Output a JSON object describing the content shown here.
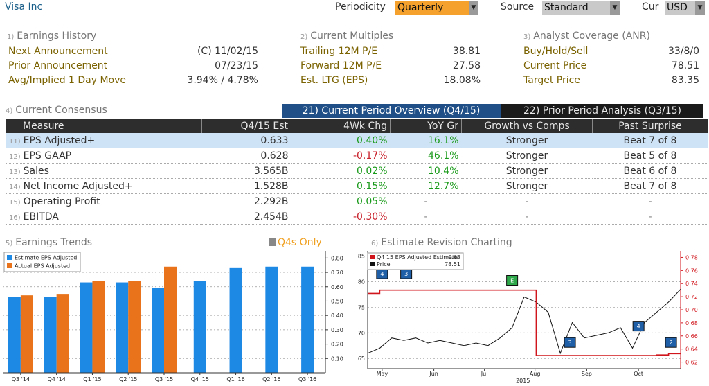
{
  "header": {
    "company": "Visa Inc",
    "periodicity_label": "Periodicity",
    "periodicity_value": "Quarterly",
    "source_label": "Source",
    "source_value": "Standard",
    "cur_label": "Cur",
    "cur_value": "USD"
  },
  "sections": {
    "earnings_history": {
      "num": "1)",
      "title": "Earnings History",
      "rows": [
        {
          "label": "Next Announcement",
          "value": "(C)  11/02/15"
        },
        {
          "label": "Prior Announcement",
          "value": "07/23/15"
        },
        {
          "label": "Avg/Implied 1 Day Move",
          "value": "3.94% / 4.78%"
        }
      ]
    },
    "current_multiples": {
      "num": "2)",
      "title": "Current Multiples",
      "rows": [
        {
          "label": "Trailing 12M P/E",
          "value": "38.81"
        },
        {
          "label": "Forward 12M P/E",
          "value": "27.58"
        },
        {
          "label": "Est. LTG (EPS)",
          "value": "18.08%"
        }
      ]
    },
    "analyst_coverage": {
      "num": "3)",
      "title": "Analyst Coverage (ANR)",
      "rows": [
        {
          "label": "Buy/Hold/Sell",
          "value": "33/8/0"
        },
        {
          "label": "Current Price",
          "value": "78.51"
        },
        {
          "label": "Target Price",
          "value": "83.35"
        }
      ]
    }
  },
  "consensus": {
    "num": "4)",
    "title": "Current Consensus",
    "tab_current": "21) Current Period Overview (Q4/15)",
    "tab_prior": "22) Prior Period Analysis (Q3/15)",
    "columns": [
      "Measure",
      "Q4/15 Est",
      "4Wk Chg",
      "YoY Gr",
      "Growth vs Comps",
      "Past Surprise"
    ],
    "rows": [
      {
        "n": "11)",
        "measure": "EPS Adjusted+",
        "est": "0.633",
        "chg": "0.40%",
        "yoy": "16.1%",
        "comps": "Stronger",
        "surprise": "Beat 7 of 8"
      },
      {
        "n": "12)",
        "measure": "EPS GAAP",
        "est": "0.628",
        "chg": "-0.17%",
        "yoy": "46.1%",
        "comps": "Stronger",
        "surprise": "Beat 5 of 8"
      },
      {
        "n": "13)",
        "measure": "Sales",
        "est": "3.565B",
        "chg": "0.02%",
        "yoy": "10.4%",
        "comps": "Stronger",
        "surprise": "Beat 6 of 8"
      },
      {
        "n": "14)",
        "measure": "Net Income Adjusted+",
        "est": "1.528B",
        "chg": "0.15%",
        "yoy": "12.7%",
        "comps": "Stronger",
        "surprise": "Beat 7 of 8"
      },
      {
        "n": "15)",
        "measure": "Operating Profit",
        "est": "2.292B",
        "chg": "0.05%",
        "yoy": "-",
        "comps": "-",
        "surprise": "-"
      },
      {
        "n": "16)",
        "measure": "EBITDA",
        "est": "2.454B",
        "chg": "-0.30%",
        "yoy": "-",
        "comps": "-",
        "surprise": "-"
      }
    ]
  },
  "trends": {
    "num": "5)",
    "title": "Earnings Trends",
    "q4_only": "Q4s Only",
    "legend": [
      "Estimate EPS Adjusted",
      "Actual EPS Adjusted"
    ]
  },
  "revision": {
    "num": "6)",
    "title": "Estimate Revision Charting",
    "legend_est": "Q4 15 EPS Adjusted Estimate",
    "legend_est_val": "0.63",
    "legend_price": "Price",
    "legend_price_val": "78.51",
    "x_labels": [
      "May",
      "Jun",
      "Jul",
      "Aug",
      "Sep",
      "Oct"
    ],
    "year_label": "2015",
    "left_ticks": [
      "85",
      "80",
      "75",
      "70",
      "65"
    ],
    "right_ticks": [
      "0.78",
      "0.76",
      "0.74",
      "0.72",
      "0.70",
      "0.68",
      "0.66",
      "0.64",
      "0.62"
    ],
    "markers": [
      "4",
      "3",
      "E",
      "3",
      "4",
      "2"
    ]
  },
  "chart_data": [
    {
      "type": "bar",
      "title": "Earnings Trends",
      "categories": [
        "Q3 '14",
        "Q4 '14",
        "Q1 '15",
        "Q2 '15",
        "Q3 '15",
        "Q4 '15",
        "Q1 '16",
        "Q2 '16",
        "Q3 '16"
      ],
      "series": [
        {
          "name": "Estimate EPS Adjusted",
          "color": "#1e88e5",
          "values": [
            0.53,
            0.53,
            0.63,
            0.63,
            0.59,
            0.64,
            0.73,
            0.74,
            0.74
          ]
        },
        {
          "name": "Actual EPS Adjusted",
          "color": "#e8731a",
          "values": [
            0.54,
            0.55,
            0.64,
            0.64,
            0.74,
            null,
            null,
            null,
            null
          ]
        }
      ],
      "y_ticks": [
        "0.80",
        "0.70",
        "0.60",
        "0.50",
        "0.40",
        "0.30",
        "0.20",
        "0.10"
      ],
      "ylim": [
        0,
        0.85
      ]
    },
    {
      "type": "line",
      "title": "Estimate Revision Charting",
      "x": [
        "Apr 27",
        "May 4",
        "May 11",
        "May 18",
        "May 25",
        "Jun 1",
        "Jun 8",
        "Jun 15",
        "Jun 22",
        "Jun 29",
        "Jul 6",
        "Jul 13",
        "Jul 20",
        "Jul 27",
        "Aug 3",
        "Aug 10",
        "Aug 17",
        "Aug 24",
        "Aug 31",
        "Sep 7",
        "Sep 14",
        "Sep 21",
        "Sep 28",
        "Oct 5",
        "Oct 12",
        "Oct 19",
        "Oct 26"
      ],
      "series": [
        {
          "name": "Price",
          "axis": "left",
          "color": "#111111",
          "values": [
            66,
            67,
            69,
            68.5,
            69,
            68,
            68.5,
            68,
            67.5,
            68,
            67.5,
            69,
            71,
            77,
            76,
            74,
            66,
            72,
            69,
            69.5,
            70,
            71,
            67,
            72,
            74,
            76,
            78.5
          ]
        },
        {
          "name": "Q4 15 EPS Adjusted Estimate",
          "axis": "right",
          "color": "#d0161c",
          "values": [
            0.725,
            0.73,
            0.73,
            0.73,
            0.73,
            0.73,
            0.73,
            0.73,
            0.73,
            0.73,
            0.73,
            0.73,
            0.73,
            0.73,
            0.63,
            0.63,
            0.63,
            0.63,
            0.63,
            0.63,
            0.63,
            0.63,
            0.63,
            0.63,
            0.631,
            0.633,
            0.633
          ]
        }
      ],
      "ylim_left": [
        63,
        86
      ],
      "ylim_right": [
        0.61,
        0.79
      ]
    }
  ]
}
